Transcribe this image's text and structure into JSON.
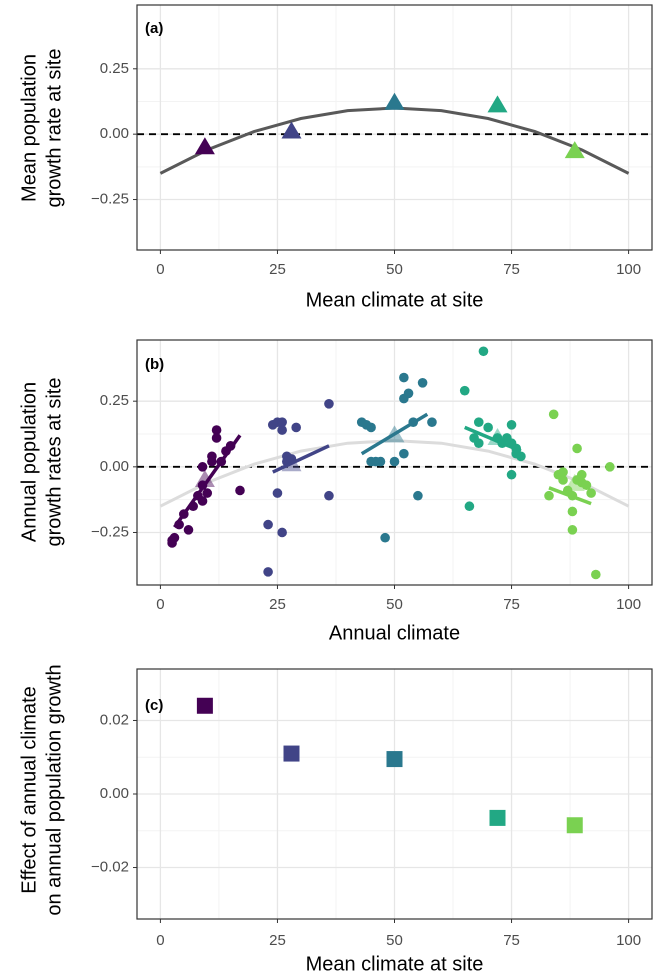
{
  "chart_data": [
    {
      "type": "scatter",
      "panel_label": "(a)",
      "xlabel": "Mean climate at site",
      "ylabel": [
        "Mean population",
        "growth rate at site"
      ],
      "xlim": [
        -5,
        105
      ],
      "ylim": [
        -0.443,
        0.494
      ],
      "xticks": [
        0,
        25,
        50,
        75,
        100
      ],
      "yticks": [
        {
          "value": -0.25,
          "label": "−0.25"
        },
        {
          "value": 0,
          "label": "0.00"
        },
        0.25
      ],
      "grid": true,
      "hline": 0,
      "curve": {
        "color": "#595959",
        "x": [
          0,
          10,
          20,
          30,
          40,
          50,
          60,
          70,
          80,
          90,
          100
        ],
        "values": [
          -0.15,
          -0.06,
          0.01,
          0.06,
          0.09,
          0.1,
          0.09,
          0.06,
          0.01,
          -0.06,
          -0.15
        ]
      },
      "points": {
        "marker": "triangle",
        "x": [
          9.5,
          28,
          50,
          72,
          88.5
        ],
        "values": [
          -0.05,
          0.01,
          0.12,
          0.11,
          -0.065
        ],
        "colors": [
          "#440154",
          "#414487",
          "#2a788e",
          "#22a884",
          "#7ad151"
        ]
      }
    },
    {
      "type": "scatter",
      "panel_label": "(b)",
      "xlabel": "Annual climate",
      "ylabel": [
        "Annual population",
        "growth rates at site"
      ],
      "xlim": [
        -5,
        105
      ],
      "ylim": [
        -0.45,
        0.483
      ],
      "xticks": [
        0,
        25,
        50,
        75,
        100
      ],
      "yticks": [
        {
          "value": -0.25,
          "label": "−0.25"
        },
        {
          "value": 0,
          "label": "0.00"
        },
        0.25
      ],
      "grid": true,
      "hline": 0,
      "curve": {
        "color": "#dcdcdc",
        "x": [
          0,
          10,
          20,
          30,
          40,
          50,
          60,
          70,
          80,
          90,
          100
        ],
        "values": [
          -0.15,
          -0.06,
          0.01,
          0.06,
          0.09,
          0.1,
          0.09,
          0.06,
          0.01,
          -0.06,
          -0.15
        ]
      },
      "groups": [
        {
          "color": "#440154",
          "x": [
            2.5,
            2.5,
            3,
            4,
            5,
            6,
            7,
            8,
            9,
            9,
            9,
            10,
            11,
            11,
            12,
            12,
            13,
            14,
            15,
            17
          ],
          "values": [
            -0.29,
            -0.28,
            -0.27,
            -0.22,
            -0.18,
            -0.24,
            -0.15,
            -0.11,
            -0.13,
            -0.07,
            0.0,
            -0.1,
            0.04,
            0.02,
            0.14,
            0.11,
            0.02,
            0.06,
            0.08,
            -0.09
          ],
          "fit": {
            "x": [
              3,
              17
            ],
            "values": [
              -0.23,
              0.12
            ]
          }
        },
        {
          "color": "#414487",
          "x": [
            23,
            23,
            24,
            25,
            25,
            26,
            26,
            26,
            27,
            27,
            28,
            29,
            36,
            36
          ],
          "values": [
            -0.4,
            -0.22,
            0.16,
            0.17,
            -0.1,
            0.17,
            -0.25,
            0.14,
            0.04,
            0.02,
            0.03,
            0.15,
            0.24,
            -0.11
          ],
          "fit": {
            "x": [
              24,
              36
            ],
            "values": [
              -0.02,
              0.08
            ]
          }
        },
        {
          "color": "#2a788e",
          "x": [
            43,
            44,
            45,
            45,
            46,
            47,
            48,
            50,
            52,
            52,
            53,
            54,
            52,
            55,
            56,
            58
          ],
          "values": [
            0.17,
            0.16,
            0.15,
            0.02,
            0.02,
            0.02,
            -0.27,
            0.02,
            0.26,
            0.34,
            0.28,
            0.17,
            0.05,
            -0.11,
            0.32,
            0.17
          ],
          "fit": {
            "x": [
              43,
              57
            ],
            "values": [
              0.05,
              0.2
            ]
          }
        },
        {
          "color": "#22a884",
          "x": [
            65,
            66,
            67,
            68,
            68,
            69,
            70,
            72,
            73,
            74,
            75,
            75,
            75,
            76,
            76,
            77
          ],
          "values": [
            0.29,
            -0.15,
            0.11,
            0.09,
            0.17,
            0.44,
            0.15,
            0.11,
            0.09,
            0.11,
            0.09,
            -0.03,
            0.16,
            0.07,
            0.05,
            0.04
          ],
          "fit": {
            "x": [
              65,
              77
            ],
            "values": [
              0.15,
              0.06
            ]
          }
        },
        {
          "color": "#7ad151",
          "x": [
            83,
            84,
            85,
            86,
            86,
            87,
            88,
            88,
            88,
            89,
            89,
            90,
            90,
            91,
            92,
            93,
            96
          ],
          "values": [
            -0.11,
            0.2,
            -0.03,
            -0.05,
            -0.02,
            -0.09,
            -0.11,
            -0.17,
            -0.24,
            -0.05,
            0.07,
            -0.03,
            -0.06,
            -0.07,
            -0.1,
            -0.41,
            0.0
          ],
          "fit": {
            "x": [
              83,
              92
            ],
            "values": [
              -0.08,
              -0.14
            ]
          }
        }
      ],
      "points": {
        "marker": "triangle",
        "opacity": 0.45,
        "x": [
          9.5,
          28,
          50,
          72,
          88.5
        ],
        "values": [
          -0.05,
          0.01,
          0.12,
          0.11,
          -0.065
        ],
        "colors": [
          "#440154",
          "#414487",
          "#2a788e",
          "#22a884",
          "#7ad151"
        ]
      }
    },
    {
      "type": "scatter",
      "panel_label": "(c)",
      "xlabel": "Mean climate at site",
      "ylabel": [
        "Effect of annual climate",
        "on annual population growth"
      ],
      "xlim": [
        -5,
        105
      ],
      "ylim": [
        -0.034,
        0.034
      ],
      "xticks": [
        0,
        25,
        50,
        75,
        100
      ],
      "yticks": [
        {
          "value": -0.02,
          "label": "−0.02"
        },
        {
          "value": 0,
          "label": "0.00"
        },
        0.02
      ],
      "grid": true,
      "points": {
        "marker": "square",
        "x": [
          9.5,
          28,
          50,
          72,
          88.5
        ],
        "values": [
          0.024,
          0.011,
          0.0095,
          -0.0065,
          -0.0085
        ],
        "colors": [
          "#440154",
          "#414487",
          "#2a788e",
          "#22a884",
          "#7ad151"
        ]
      }
    }
  ]
}
